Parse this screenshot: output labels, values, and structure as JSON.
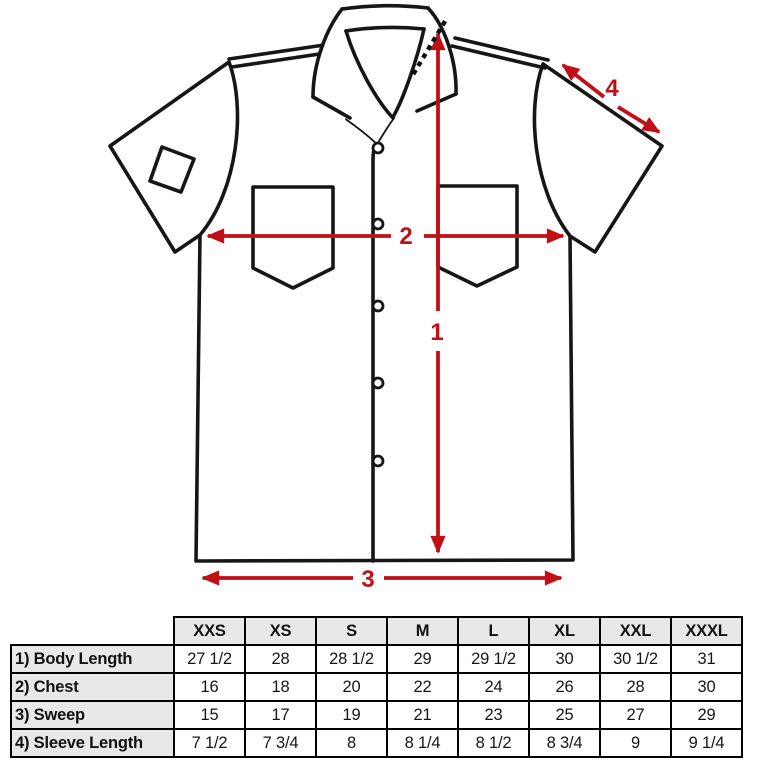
{
  "diagram": {
    "title": "shirt-measurement-diagram",
    "measure_labels": {
      "m1": "1",
      "m2": "2",
      "m3": "3",
      "m4": "4"
    },
    "colors": {
      "arrow": "#c01016",
      "outline": "#161616",
      "table_header_bg": "#e8e8e8"
    }
  },
  "chart_data": {
    "type": "table",
    "columns": [
      "XXS",
      "XS",
      "S",
      "M",
      "L",
      "XL",
      "XXL",
      "XXXL"
    ],
    "rows": [
      {
        "label": "1) Body Length",
        "values": [
          "27 1/2",
          "28",
          "28 1/2",
          "29",
          "29 1/2",
          "30",
          "30 1/2",
          "31"
        ]
      },
      {
        "label": "2) Chest",
        "values": [
          "16",
          "18",
          "20",
          "22",
          "24",
          "26",
          "28",
          "30"
        ]
      },
      {
        "label": "3) Sweep",
        "values": [
          "15",
          "17",
          "19",
          "21",
          "23",
          "25",
          "27",
          "29"
        ]
      },
      {
        "label": "4) Sleeve Length",
        "values": [
          "7 1/2",
          "7 3/4",
          "8",
          "8 1/4",
          "8 1/2",
          "8 3/4",
          "9",
          "9 1/4"
        ]
      }
    ]
  }
}
